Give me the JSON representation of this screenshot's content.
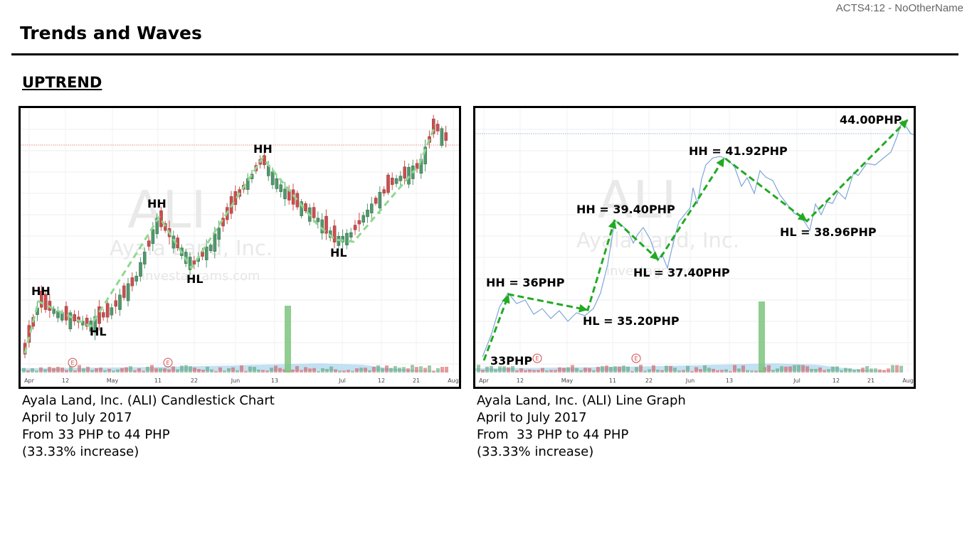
{
  "header": {
    "reference": "ACTS4:12 - NoOtherName"
  },
  "page": {
    "title": "Trends and Waves",
    "section": "UPTREND"
  },
  "colors": {
    "up": "#4c9a6a",
    "down": "#d24b4b",
    "trend_dashed_left": "#8fd88f",
    "trend_dashed_right": "#22aa22",
    "price_line": "#7ea6d8",
    "volume_spike": "#7cc47c",
    "volume_area": "#a8d4f0"
  },
  "charts": {
    "left": {
      "watermark_ticker": "ALI",
      "watermark_company": "Ayala Land, Inc.",
      "watermark_site": "investagrams.com",
      "caption": [
        "Ayala Land, Inc. (ALI) Candlestick Chart",
        "April to July 2017",
        "From 33 PHP to 44 PHP",
        "(33.33% increase)"
      ],
      "labels": [
        {
          "text": "HH"
        },
        {
          "text": "HL"
        },
        {
          "text": "HH"
        },
        {
          "text": "HL"
        },
        {
          "text": "HH"
        },
        {
          "text": "HL"
        }
      ],
      "earnings_marker": "E",
      "x_ticks": [
        "Apr",
        "12",
        "May",
        "11",
        "22",
        "Jun",
        "13",
        "Jul",
        "12",
        "21",
        "Aug"
      ]
    },
    "right": {
      "watermark_ticker": "ALI",
      "watermark_company": "Ayala Land, Inc.",
      "watermark_site": "investagrams.com",
      "caption": [
        "Ayala Land, Inc. (ALI) Line Graph",
        "April to July 2017",
        "From  33 PHP to 44 PHP",
        "(33.33% increase)"
      ],
      "labels": [
        {
          "text": "33PHP"
        },
        {
          "text": "HH = 36PHP"
        },
        {
          "text": "HL = 35.20PHP"
        },
        {
          "text": "HH = 39.40PHP"
        },
        {
          "text": "HL = 37.40PHP"
        },
        {
          "text": "HH = 41.92PHP"
        },
        {
          "text": "HL = 38.96PHP"
        },
        {
          "text": "44.00PHP"
        }
      ],
      "earnings_marker": "E",
      "x_ticks": [
        "Apr",
        "12",
        "May",
        "11",
        "22",
        "Jun",
        "13",
        "Jul",
        "12",
        "21",
        "Aug"
      ]
    }
  },
  "chart_data": [
    {
      "type": "candlestick",
      "title": "",
      "xlabel": "",
      "ylabel": "",
      "x_range": [
        "2017-04-01",
        "2017-08-01"
      ],
      "trend": "uptrend",
      "swing_points": [
        {
          "label": "HH",
          "price": 36.0
        },
        {
          "label": "HL",
          "price": 35.2
        },
        {
          "label": "HH",
          "price": 39.4
        },
        {
          "label": "HL",
          "price": 37.4
        },
        {
          "label": "HH",
          "price": 41.92
        },
        {
          "label": "HL",
          "price": 38.96
        }
      ],
      "start_price": 33.0,
      "end_price": 44.0
    },
    {
      "type": "line",
      "title": "",
      "xlabel": "",
      "ylabel": "",
      "x_range": [
        "2017-04-01",
        "2017-08-01"
      ],
      "trend": "uptrend",
      "series": [
        {
          "values": [
            33.0,
            36.0,
            35.2,
            39.4,
            37.4,
            41.92,
            38.96,
            44.0
          ]
        }
      ]
    }
  ]
}
